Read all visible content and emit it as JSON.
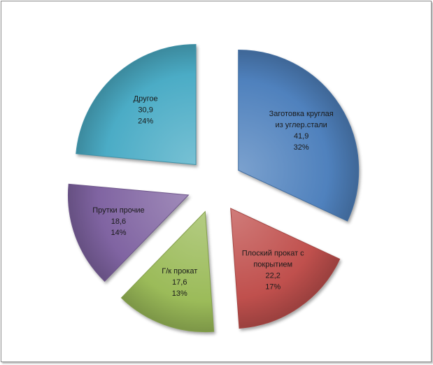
{
  "chart_data": {
    "type": "pie",
    "exploded": true,
    "categories": [
      "Заготовка круглая из углер.стали",
      "Плоский прокат с покрытием",
      "Г/к прокат",
      "Прутки прочие",
      "Другое"
    ],
    "label_lines": [
      [
        "Заготовка круглая",
        "из углер.стали"
      ],
      [
        "Плоский прокат с",
        "покрытием"
      ],
      [
        "Г/к прокат"
      ],
      [
        "Прутки прочие"
      ],
      [
        "Другое"
      ]
    ],
    "values": [
      41.9,
      22.2,
      17.6,
      18.6,
      30.9
    ],
    "value_labels": [
      "41,9",
      "22,2",
      "17,6",
      "18,6",
      "30,9"
    ],
    "percent_labels": [
      "32%",
      "17%",
      "13%",
      "14%",
      "24%"
    ],
    "colors": [
      "#4f81bd",
      "#c0504d",
      "#9bbb59",
      "#8064a2",
      "#4bacc6"
    ],
    "legend": "none"
  }
}
